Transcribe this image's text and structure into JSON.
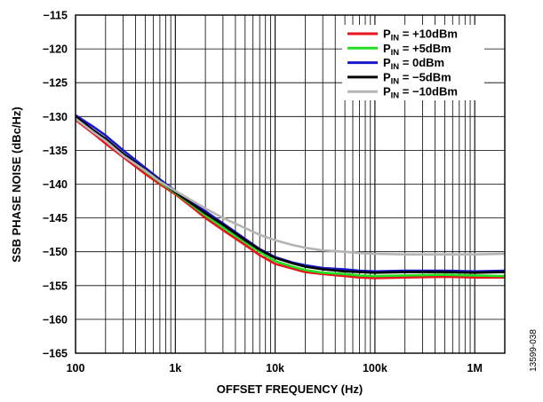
{
  "chart_data": {
    "type": "line",
    "xlabel": "OFFSET FREQUENCY (Hz)",
    "ylabel": "SSB PHASE NOISE (dBc/Hz)",
    "x_scale": "log",
    "xlim": [
      100,
      2000000
    ],
    "ylim": [
      -165,
      -115
    ],
    "x_ticks": [
      {
        "value": 100,
        "label": "100"
      },
      {
        "value": 1000,
        "label": "1k"
      },
      {
        "value": 10000,
        "label": "10k"
      },
      {
        "value": 100000,
        "label": "100k"
      },
      {
        "value": 1000000,
        "label": "1M"
      }
    ],
    "y_ticks": [
      -115,
      -120,
      -125,
      -130,
      -135,
      -140,
      -145,
      -150,
      -155,
      -160,
      -165
    ],
    "grid": true,
    "legend_position": "top-right",
    "figure_id": "13599-038",
    "series": [
      {
        "name_main": "P",
        "name_sub": "IN",
        "name_rest": " = +10dBm",
        "color": "#e8141c",
        "x": [
          100,
          150,
          200,
          300,
          500,
          700,
          1000,
          1500,
          2000,
          3000,
          5000,
          7000,
          10000,
          15000,
          20000,
          30000,
          50000,
          70000,
          100000,
          200000,
          500000,
          1000000,
          2000000
        ],
        "y": [
          -130.5,
          -132.5,
          -134.0,
          -136.0,
          -138.5,
          -140.0,
          -141.5,
          -143.5,
          -145.0,
          -146.8,
          -149.0,
          -150.5,
          -151.8,
          -152.5,
          -153.0,
          -153.3,
          -153.6,
          -153.8,
          -153.9,
          -153.8,
          -153.7,
          -153.8,
          -153.8
        ]
      },
      {
        "name_main": "P",
        "name_sub": "IN",
        "name_rest": " = +5dBm",
        "color": "#22dd22",
        "x": [
          100,
          150,
          200,
          300,
          500,
          700,
          1000,
          1500,
          2000,
          3000,
          5000,
          7000,
          10000,
          15000,
          20000,
          30000,
          50000,
          70000,
          100000,
          200000,
          500000,
          1000000,
          2000000
        ],
        "y": [
          -130.2,
          -132.2,
          -133.5,
          -135.7,
          -138.1,
          -139.7,
          -141.3,
          -143.2,
          -144.6,
          -146.4,
          -148.6,
          -150.0,
          -151.4,
          -152.2,
          -152.7,
          -153.1,
          -153.3,
          -153.5,
          -153.6,
          -153.5,
          -153.4,
          -153.5,
          -153.6
        ]
      },
      {
        "name_main": "P",
        "name_sub": "IN",
        "name_rest": " = 0dBm",
        "color": "#1818cc",
        "x": [
          100,
          150,
          200,
          300,
          500,
          700,
          1000,
          1500,
          2000,
          3000,
          5000,
          7000,
          10000,
          15000,
          20000,
          30000,
          50000,
          70000,
          100000,
          200000,
          500000,
          1000000,
          2000000
        ],
        "y": [
          -129.8,
          -131.5,
          -132.8,
          -135.0,
          -137.6,
          -139.3,
          -141.0,
          -142.8,
          -144.0,
          -145.8,
          -148.1,
          -149.6,
          -150.8,
          -151.6,
          -152.0,
          -152.4,
          -152.6,
          -152.8,
          -152.9,
          -152.8,
          -152.8,
          -152.9,
          -152.8
        ]
      },
      {
        "name_main": "P",
        "name_sub": "IN",
        "name_rest": " = −5dBm",
        "color": "#000000",
        "x": [
          100,
          150,
          200,
          300,
          500,
          700,
          1000,
          1500,
          2000,
          3000,
          5000,
          7000,
          10000,
          15000,
          20000,
          30000,
          50000,
          70000,
          100000,
          200000,
          500000,
          1000000,
          2000000
        ],
        "y": [
          -130.0,
          -132.0,
          -133.3,
          -135.5,
          -137.9,
          -139.5,
          -141.2,
          -143.0,
          -144.3,
          -146.0,
          -148.3,
          -149.7,
          -150.9,
          -151.7,
          -152.2,
          -152.6,
          -152.9,
          -153.0,
          -153.1,
          -153.0,
          -153.0,
          -153.1,
          -153.0
        ]
      },
      {
        "name_main": "P",
        "name_sub": "IN",
        "name_rest": " = −10dBm",
        "color": "#b4b4b4",
        "x": [
          100,
          150,
          200,
          300,
          500,
          700,
          1000,
          1500,
          2000,
          3000,
          5000,
          7000,
          10000,
          15000,
          20000,
          30000,
          50000,
          70000,
          100000,
          200000,
          500000,
          1000000,
          2000000
        ],
        "y": [
          -130.3,
          -132.3,
          -133.6,
          -135.8,
          -138.0,
          -139.6,
          -141.0,
          -142.5,
          -143.6,
          -145.0,
          -146.5,
          -147.5,
          -148.3,
          -149.0,
          -149.4,
          -149.8,
          -150.0,
          -150.2,
          -150.3,
          -150.4,
          -150.4,
          -150.4,
          -150.3
        ]
      }
    ]
  }
}
